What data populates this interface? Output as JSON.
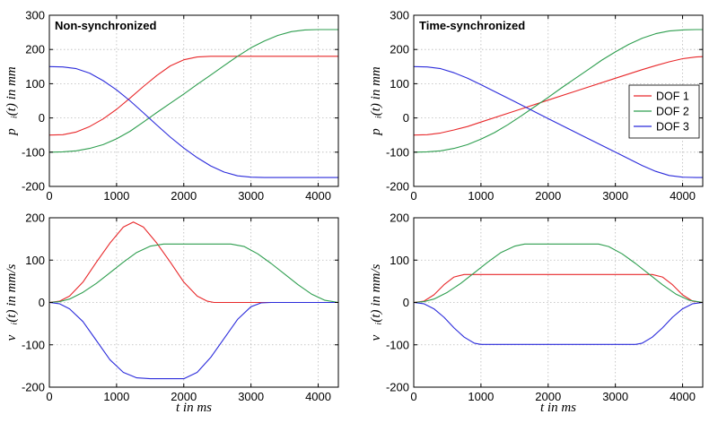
{
  "chart_data": [
    {
      "type": "line",
      "title": "Non-synchronized",
      "xlabel": "",
      "ylabel": "p⃗ᵢ(t) in mm",
      "xlim": [
        0,
        4300
      ],
      "ylim": [
        -200,
        300
      ],
      "xticks": [
        0,
        1000,
        2000,
        3000,
        4000
      ],
      "yticks": [
        -200,
        -100,
        0,
        100,
        200,
        300
      ],
      "grid": true,
      "legend": "none",
      "series": [
        {
          "name": "DOF 1",
          "color": "#e8282a",
          "x": [
            0,
            200,
            400,
            600,
            800,
            1000,
            1200,
            1400,
            1600,
            1800,
            2000,
            2200,
            2400,
            2600,
            3000,
            3500,
            4000,
            4300
          ],
          "y": [
            -50,
            -49,
            -41,
            -25,
            -3,
            25,
            58,
            92,
            124,
            152,
            170,
            178,
            180,
            180,
            180,
            180,
            180,
            180
          ]
        },
        {
          "name": "DOF 2",
          "color": "#2e9e4f",
          "x": [
            0,
            200,
            400,
            600,
            800,
            1000,
            1200,
            1400,
            1600,
            1800,
            2000,
            2200,
            2400,
            2600,
            2800,
            3000,
            3200,
            3400,
            3600,
            3800,
            4000,
            4300
          ],
          "y": [
            -100,
            -99,
            -96,
            -89,
            -78,
            -61,
            -39,
            -12,
            16,
            43,
            70,
            98,
            125,
            153,
            180,
            205,
            225,
            241,
            252,
            257,
            258,
            258
          ]
        },
        {
          "name": "DOF 3",
          "color": "#2b2bdb",
          "x": [
            0,
            200,
            400,
            600,
            800,
            1000,
            1200,
            1400,
            1600,
            1800,
            2000,
            2200,
            2400,
            2600,
            2800,
            3000,
            3200,
            3500,
            4000,
            4300
          ],
          "y": [
            150,
            149,
            144,
            131,
            109,
            82,
            50,
            15,
            -21,
            -56,
            -88,
            -116,
            -140,
            -158,
            -169,
            -173,
            -174,
            -174,
            -174,
            -174
          ]
        }
      ]
    },
    {
      "type": "line",
      "title": "Time-synchronized",
      "xlabel": "",
      "ylabel": "p⃗ᵢ(t) in mm",
      "xlim": [
        0,
        4300
      ],
      "ylim": [
        -200,
        300
      ],
      "xticks": [
        0,
        1000,
        2000,
        3000,
        4000
      ],
      "yticks": [
        -200,
        -100,
        0,
        100,
        200,
        300
      ],
      "grid": true,
      "legend": "right",
      "series": [
        {
          "name": "DOF 1",
          "color": "#e8282a",
          "x": [
            0,
            200,
            400,
            600,
            800,
            1000,
            1500,
            2000,
            2500,
            3000,
            3400,
            3600,
            3800,
            4000,
            4200,
            4300
          ],
          "y": [
            -50,
            -49,
            -44,
            -35,
            -25,
            -12,
            20,
            52,
            84,
            116,
            141,
            153,
            164,
            173,
            178,
            179
          ]
        },
        {
          "name": "DOF 2",
          "color": "#2e9e4f",
          "x": [
            0,
            200,
            400,
            600,
            800,
            1000,
            1200,
            1400,
            1600,
            1800,
            2000,
            2200,
            2400,
            2600,
            2800,
            3000,
            3200,
            3400,
            3600,
            3800,
            4000,
            4200,
            4300
          ],
          "y": [
            -100,
            -99,
            -96,
            -89,
            -78,
            -62,
            -43,
            -20,
            6,
            33,
            60,
            88,
            115,
            142,
            169,
            193,
            215,
            233,
            246,
            254,
            257,
            258,
            258
          ]
        },
        {
          "name": "DOF 3",
          "color": "#2b2bdb",
          "x": [
            0,
            200,
            400,
            600,
            800,
            1000,
            1500,
            2000,
            2500,
            3000,
            3400,
            3600,
            3800,
            4000,
            4200,
            4300
          ],
          "y": [
            150,
            149,
            144,
            132,
            116,
            97,
            48,
            -2,
            -51,
            -100,
            -139,
            -156,
            -168,
            -173,
            -174,
            -174
          ]
        }
      ],
      "legend_entries": [
        "DOF 1",
        "DOF 2",
        "DOF 3"
      ]
    },
    {
      "type": "line",
      "title": "",
      "xlabel": "t in ms",
      "ylabel": "v⃗ᵢ(t) in mm/s",
      "xlim": [
        0,
        4300
      ],
      "ylim": [
        -200,
        200
      ],
      "xticks": [
        0,
        1000,
        2000,
        3000,
        4000
      ],
      "yticks": [
        -200,
        -100,
        0,
        100,
        200
      ],
      "grid": true,
      "legend": "none",
      "series": [
        {
          "name": "DOF 1",
          "color": "#e8282a",
          "x": [
            0,
            150,
            300,
            500,
            700,
            900,
            1100,
            1250,
            1400,
            1600,
            1800,
            2000,
            2200,
            2350,
            2450,
            2600,
            3000,
            4300
          ],
          "y": [
            0,
            3,
            15,
            48,
            95,
            140,
            178,
            190,
            178,
            140,
            95,
            48,
            15,
            3,
            0,
            0,
            0,
            0
          ]
        },
        {
          "name": "DOF 2",
          "color": "#2e9e4f",
          "x": [
            0,
            150,
            300,
            500,
            700,
            900,
            1100,
            1300,
            1500,
            1700,
            2700,
            2900,
            3100,
            3300,
            3500,
            3700,
            3900,
            4100,
            4300
          ],
          "y": [
            0,
            2,
            8,
            24,
            45,
            70,
            95,
            118,
            133,
            138,
            138,
            132,
            115,
            92,
            67,
            42,
            20,
            5,
            0
          ]
        },
        {
          "name": "DOF 3",
          "color": "#2b2bdb",
          "x": [
            0,
            150,
            300,
            500,
            700,
            900,
            1100,
            1300,
            1500,
            2000,
            2200,
            2400,
            2600,
            2800,
            3000,
            3150,
            3300,
            4300
          ],
          "y": [
            0,
            -3,
            -15,
            -45,
            -90,
            -135,
            -165,
            -178,
            -180,
            -180,
            -165,
            -130,
            -85,
            -40,
            -10,
            -1,
            0,
            0
          ]
        }
      ]
    },
    {
      "type": "line",
      "title": "",
      "xlabel": "t in ms",
      "ylabel": "v⃗ᵢ(t) in mm/s",
      "xlim": [
        0,
        4300
      ],
      "ylim": [
        -200,
        200
      ],
      "xticks": [
        0,
        1000,
        2000,
        3000,
        4000
      ],
      "yticks": [
        -200,
        -100,
        0,
        100,
        200
      ],
      "grid": true,
      "legend": "none",
      "series": [
        {
          "name": "DOF 1",
          "color": "#e8282a",
          "x": [
            0,
            150,
            300,
            450,
            600,
            750,
            3550,
            3700,
            3850,
            4000,
            4150,
            4300
          ],
          "y": [
            0,
            3,
            18,
            42,
            60,
            66,
            66,
            60,
            42,
            18,
            3,
            0
          ]
        },
        {
          "name": "DOF 2",
          "color": "#2e9e4f",
          "x": [
            0,
            150,
            300,
            500,
            700,
            900,
            1100,
            1300,
            1500,
            1650,
            2750,
            2900,
            3100,
            3300,
            3500,
            3700,
            3900,
            4100,
            4300
          ],
          "y": [
            0,
            2,
            8,
            24,
            45,
            70,
            95,
            118,
            133,
            138,
            138,
            132,
            115,
            92,
            67,
            42,
            20,
            5,
            0
          ]
        },
        {
          "name": "DOF 3",
          "color": "#2b2bdb",
          "x": [
            0,
            150,
            300,
            450,
            600,
            750,
            900,
            1000,
            3300,
            3400,
            3550,
            3700,
            3850,
            4000,
            4150,
            4300
          ],
          "y": [
            0,
            -3,
            -15,
            -35,
            -60,
            -82,
            -96,
            -99,
            -99,
            -96,
            -82,
            -60,
            -35,
            -15,
            -3,
            0
          ]
        }
      ]
    }
  ]
}
